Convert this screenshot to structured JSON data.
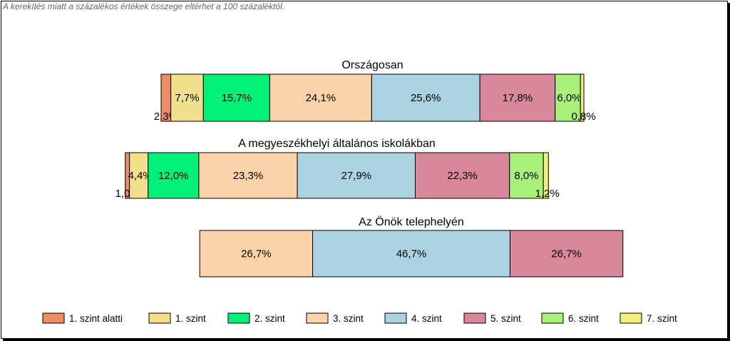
{
  "note": "A kerekítés miatt a  százalékos értékek összege eltérhet a 100 százaléktól.",
  "chart_data": {
    "type": "bar",
    "orientation": "horizontal-stacked-percent",
    "legend_position": "bottom",
    "categories": [
      "1. szint alatti",
      "1. szint",
      "2. szint",
      "3. szint",
      "4. szint",
      "5. szint",
      "6. szint",
      "7. szint"
    ],
    "colors": [
      "#f08c64",
      "#f0e08c",
      "#00f078",
      "#fcd2a8",
      "#aad2e0",
      "#d8889a",
      "#a8f07a",
      "#f0f07a"
    ],
    "groups": [
      {
        "title": "Országosan",
        "values": [
          2.3,
          7.7,
          15.7,
          24.1,
          25.6,
          17.8,
          6.0,
          0.8
        ],
        "labels": [
          "2,3%",
          "7,7%",
          "15,7%",
          "24,1%",
          "25,6%",
          "17,8%",
          "6,0%",
          "0,8%"
        ]
      },
      {
        "title": "A megyeszékhelyi általános iskolákban",
        "values": [
          1.0,
          4.4,
          12.0,
          23.3,
          27.9,
          22.3,
          8.0,
          1.2
        ],
        "labels": [
          "1,0%",
          "4,4%",
          "12,0%",
          "23,3%",
          "27,9%",
          "22,3%",
          "8,0%",
          "1,2%"
        ]
      },
      {
        "title": "Az Önök telephelyén",
        "values": [
          0,
          0,
          0,
          26.7,
          46.7,
          26.7,
          0,
          0
        ],
        "labels": [
          "",
          "",
          "",
          "26,7%",
          "46,7%",
          "26,7%",
          "",
          ""
        ]
      }
    ]
  }
}
